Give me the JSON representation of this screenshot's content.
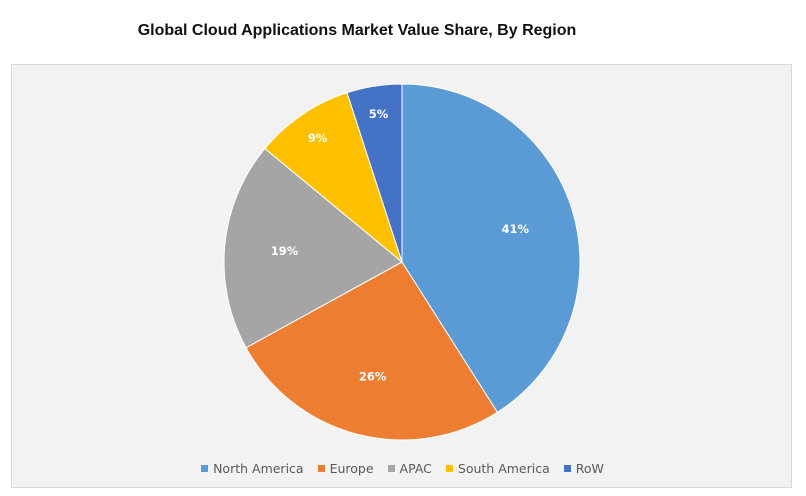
{
  "title": "Global Cloud Applications Market Value Share, By Region",
  "chart_data": {
    "type": "pie",
    "title": "Global Cloud Applications Market Value Share, By Region",
    "categories": [
      "North America",
      "Europe",
      "APAC",
      "South America",
      "RoW"
    ],
    "values": [
      41,
      26,
      19,
      9,
      5
    ],
    "labels": [
      "41%",
      "26%",
      "19%",
      "9%",
      "5%"
    ],
    "colors": [
      "#5b9bd5",
      "#ed7d31",
      "#a5a5a5",
      "#ffc000",
      "#4472c4"
    ],
    "start": "12 o'clock",
    "direction": "clockwise",
    "legend_position": "bottom"
  },
  "legend": {
    "items": [
      {
        "label": "North America",
        "color": "#5b9bd5"
      },
      {
        "label": "Europe",
        "color": "#ed7d31"
      },
      {
        "label": "APAC",
        "color": "#a5a5a5"
      },
      {
        "label": "South America",
        "color": "#ffc000"
      },
      {
        "label": "RoW",
        "color": "#4472c4"
      }
    ]
  }
}
